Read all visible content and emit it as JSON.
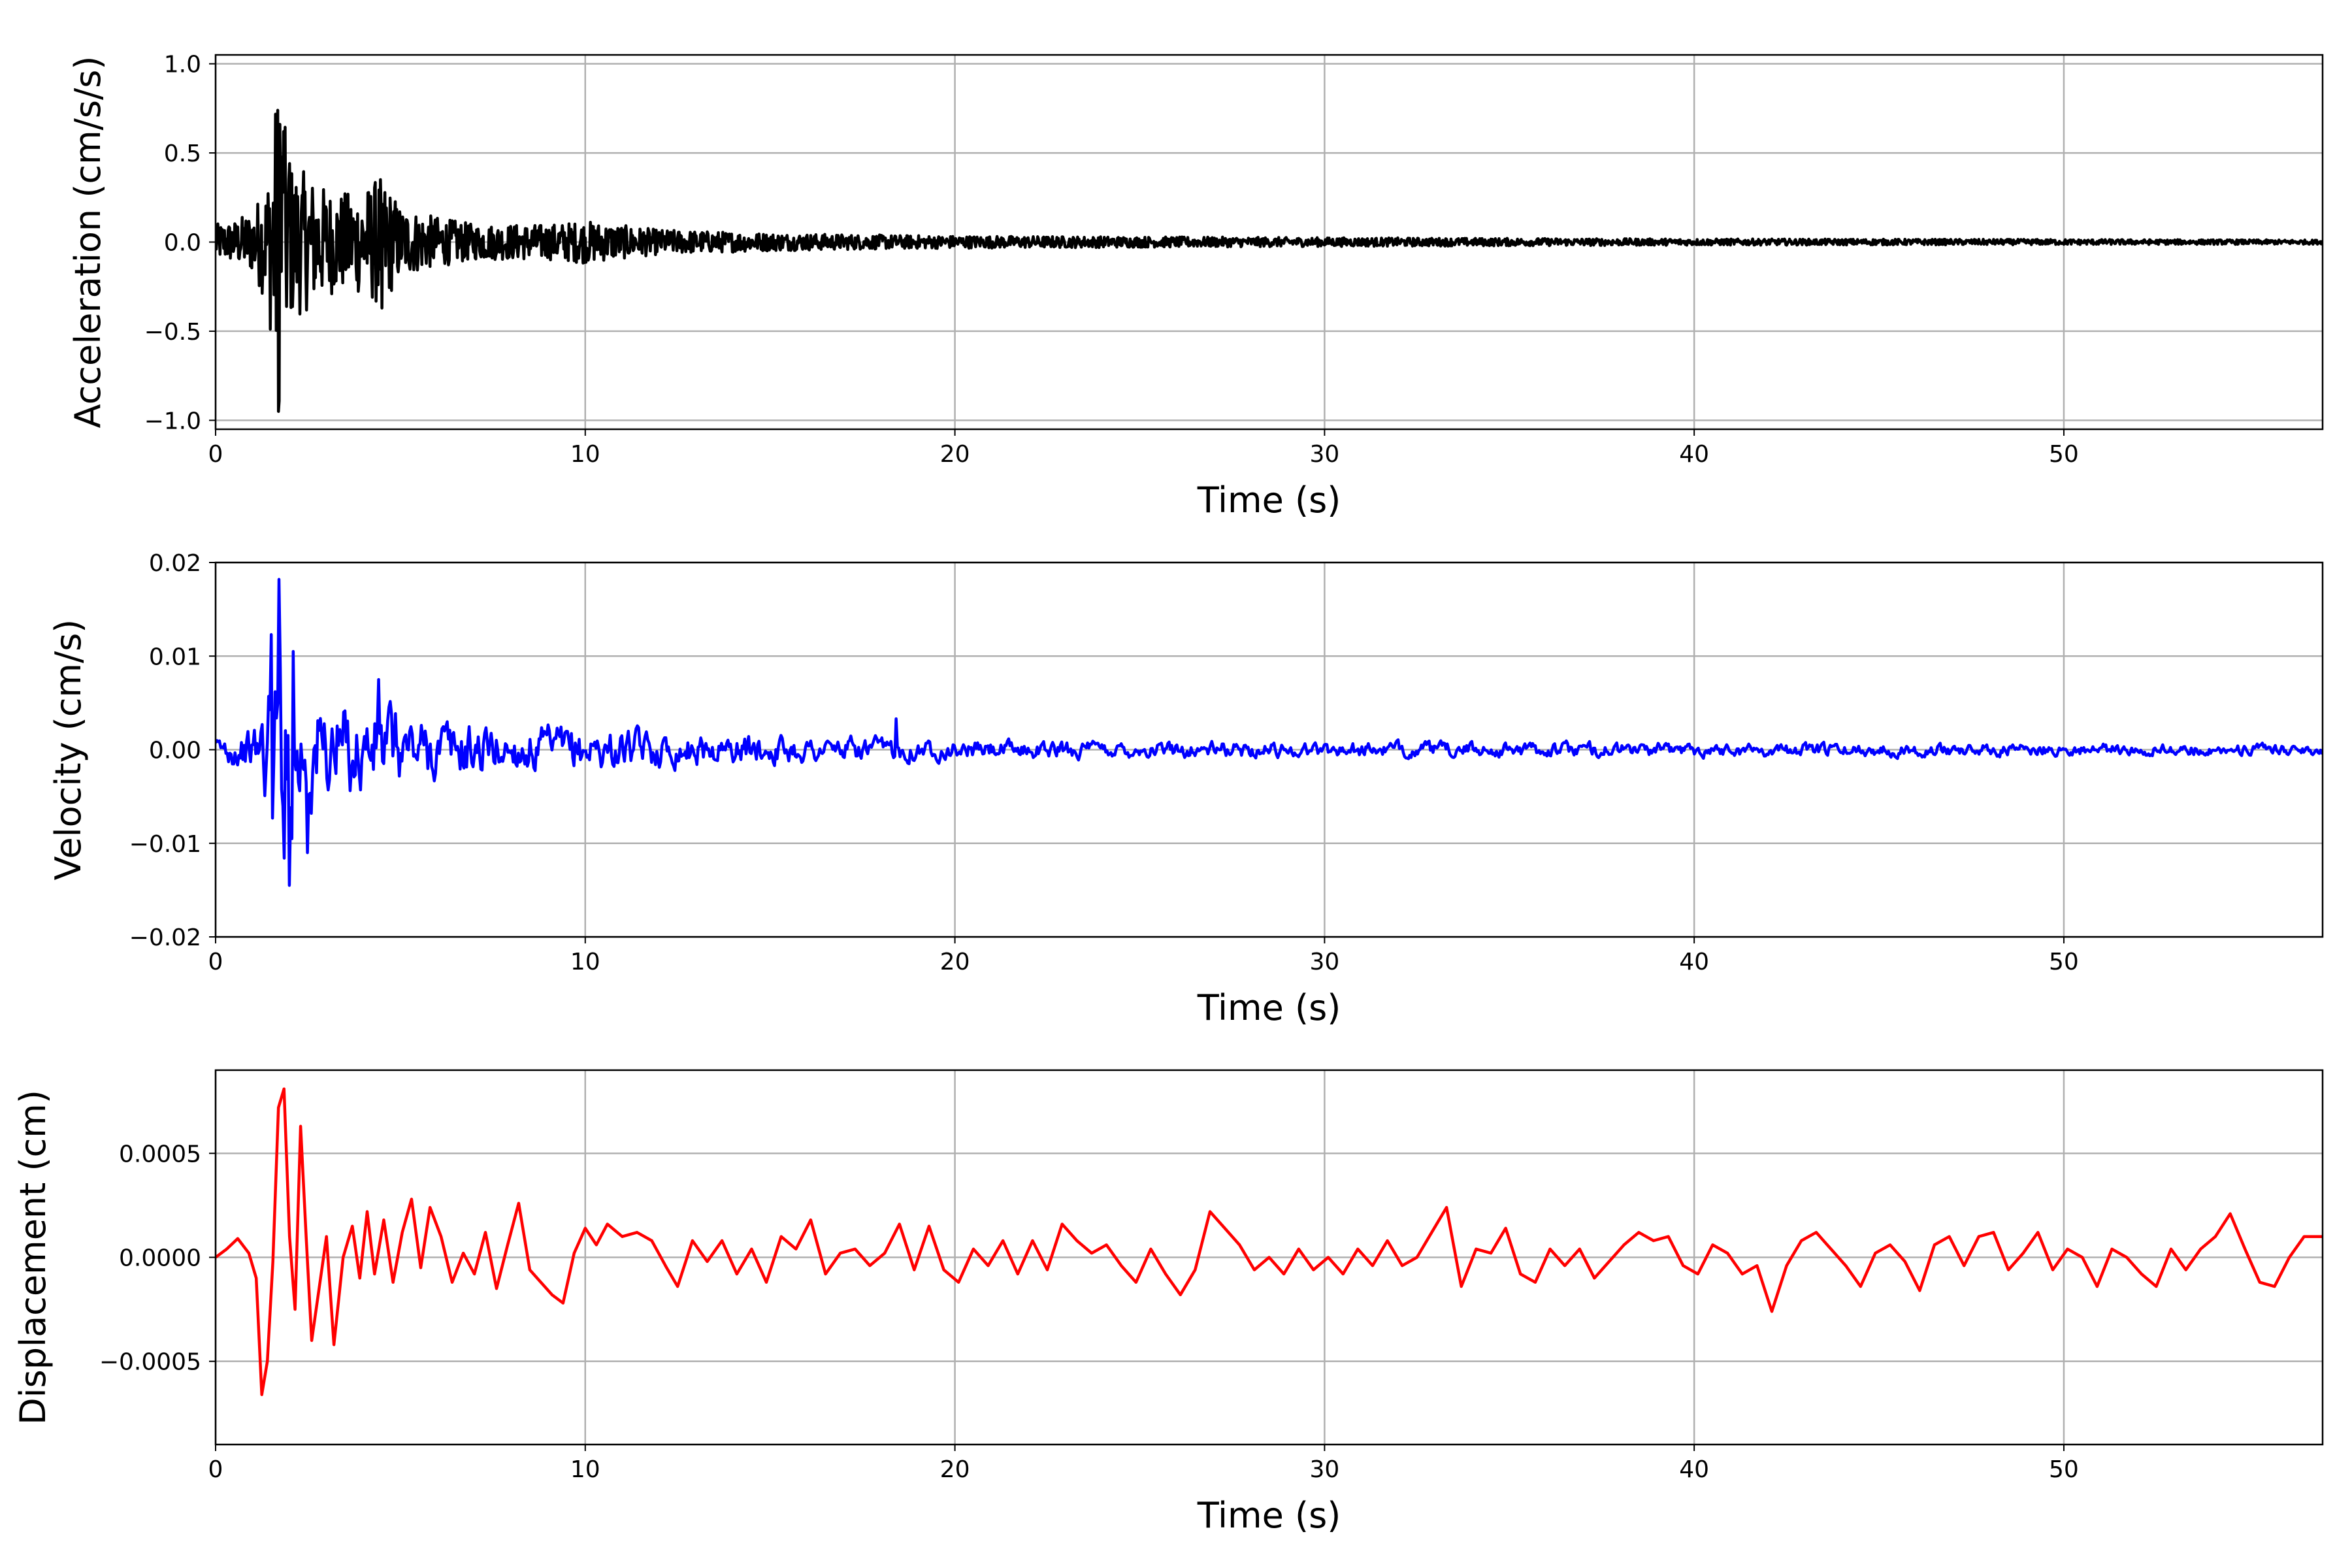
{
  "chart_data": [
    {
      "type": "line",
      "panel": "acceleration",
      "xlabel": "Time (s)",
      "ylabel": "Acceleration (cm/s/s)",
      "xlim": [
        0,
        57
      ],
      "ylim": [
        -1.05,
        1.05
      ],
      "xticks": [
        0,
        10,
        20,
        30,
        40,
        50
      ],
      "xtick_labels": [
        "0",
        "10",
        "20",
        "30",
        "40",
        "50"
      ],
      "yticks": [
        -1.0,
        -0.5,
        0.0,
        0.5,
        1.0
      ],
      "ytick_labels": [
        "−1.0",
        "−0.5",
        "0.0",
        "0.5",
        "1.0"
      ],
      "grid": true,
      "series": [
        {
          "color": "#000000",
          "envelope": [
            [
              0,
              0.1
            ],
            [
              0.5,
              0.12
            ],
            [
              1.0,
              0.18
            ],
            [
              1.4,
              0.35
            ],
            [
              1.7,
              0.95
            ],
            [
              2.0,
              0.45
            ],
            [
              2.5,
              0.38
            ],
            [
              3.0,
              0.3
            ],
            [
              3.5,
              0.28
            ],
            [
              4.0,
              0.3
            ],
            [
              4.5,
              0.38
            ],
            [
              5.0,
              0.2
            ],
            [
              5.8,
              0.15
            ],
            [
              7.0,
              0.1
            ],
            [
              9.0,
              0.1
            ],
            [
              10.0,
              0.12
            ],
            [
              12.0,
              0.07
            ],
            [
              15.0,
              0.05
            ],
            [
              18.0,
              0.04
            ],
            [
              20.0,
              0.035
            ],
            [
              25.0,
              0.03
            ],
            [
              30.0,
              0.025
            ],
            [
              40.0,
              0.018
            ],
            [
              50.0,
              0.015
            ],
            [
              57.0,
              0.012
            ]
          ],
          "peaks": [
            {
              "x": 1.7,
              "y": -0.95
            },
            {
              "x": 1.75,
              "y": 0.66
            },
            {
              "x": 1.85,
              "y": 0.62
            },
            {
              "x": 2.0,
              "y": 0.44
            },
            {
              "x": 4.5,
              "y": -0.37
            },
            {
              "x": 4.45,
              "y": 0.35
            }
          ]
        }
      ]
    },
    {
      "type": "line",
      "panel": "velocity",
      "xlabel": "Time (s)",
      "ylabel": "Velocity (cm/s)",
      "xlim": [
        0,
        57
      ],
      "ylim": [
        -0.02,
        0.02
      ],
      "xticks": [
        0,
        10,
        20,
        30,
        40,
        50
      ],
      "xtick_labels": [
        "0",
        "10",
        "20",
        "30",
        "40",
        "50"
      ],
      "yticks": [
        -0.02,
        -0.01,
        0.0,
        0.01,
        0.02
      ],
      "ytick_labels": [
        "−0.02",
        "−0.01",
        "0.00",
        "0.01",
        "0.02"
      ],
      "grid": true,
      "series": [
        {
          "color": "#0000ff",
          "envelope": [
            [
              0,
              0.0015
            ],
            [
              1.0,
              0.003
            ],
            [
              1.4,
              0.009
            ],
            [
              1.7,
              0.018
            ],
            [
              2.0,
              0.013
            ],
            [
              2.5,
              0.009
            ],
            [
              3.0,
              0.007
            ],
            [
              4.0,
              0.006
            ],
            [
              4.5,
              0.007
            ],
            [
              5.0,
              0.005
            ],
            [
              6.0,
              0.004
            ],
            [
              8.0,
              0.003
            ],
            [
              10.0,
              0.003
            ],
            [
              12.0,
              0.0022
            ],
            [
              15.0,
              0.0018
            ],
            [
              18.0,
              0.0015
            ],
            [
              20.0,
              0.0012
            ],
            [
              30.0,
              0.001
            ],
            [
              40.0,
              0.0009
            ],
            [
              50.0,
              0.0008
            ],
            [
              57.0,
              0.0007
            ]
          ],
          "peaks": [
            {
              "x": 1.7,
              "y": 0.0182
            },
            {
              "x": 1.5,
              "y": 0.0123
            },
            {
              "x": 2.0,
              "y": -0.0145
            },
            {
              "x": 2.1,
              "y": 0.0105
            },
            {
              "x": 2.5,
              "y": -0.011
            },
            {
              "x": 4.4,
              "y": 0.0075
            },
            {
              "x": 18.4,
              "y": 0.0033
            }
          ]
        }
      ]
    },
    {
      "type": "line",
      "panel": "displacement",
      "xlabel": "Time (s)",
      "ylabel": "Displacement (cm)",
      "xlim": [
        0,
        57
      ],
      "ylim": [
        -0.0009,
        0.0009
      ],
      "xticks": [
        0,
        10,
        20,
        30,
        40,
        50
      ],
      "xtick_labels": [
        "0",
        "10",
        "20",
        "30",
        "40",
        "50"
      ],
      "yticks": [
        -0.0005,
        0.0,
        0.0005
      ],
      "ytick_labels": [
        "−0.0005",
        "0.0000",
        "0.0005"
      ],
      "grid": true,
      "series": [
        {
          "color": "#ff0000",
          "points": [
            [
              0,
              0.0
            ],
            [
              0.3,
              4e-05
            ],
            [
              0.6,
              9e-05
            ],
            [
              0.9,
              2e-05
            ],
            [
              1.1,
              -0.0001
            ],
            [
              1.25,
              -0.00066
            ],
            [
              1.4,
              -0.0005
            ],
            [
              1.55,
              -2e-05
            ],
            [
              1.7,
              0.00072
            ],
            [
              1.85,
              0.00081
            ],
            [
              2.0,
              0.0001
            ],
            [
              2.15,
              -0.00025
            ],
            [
              2.3,
              0.00063
            ],
            [
              2.45,
              0.0001
            ],
            [
              2.6,
              -0.0004
            ],
            [
              2.8,
              -0.00015
            ],
            [
              3.0,
              0.0001
            ],
            [
              3.2,
              -0.00042
            ],
            [
              3.45,
              0.0
            ],
            [
              3.7,
              0.00015
            ],
            [
              3.9,
              -0.0001
            ],
            [
              4.1,
              0.00022
            ],
            [
              4.3,
              -8e-05
            ],
            [
              4.55,
              0.00018
            ],
            [
              4.8,
              -0.00012
            ],
            [
              5.05,
              0.00012
            ],
            [
              5.3,
              0.00028
            ],
            [
              5.55,
              -5e-05
            ],
            [
              5.8,
              0.00024
            ],
            [
              6.1,
              0.0001
            ],
            [
              6.4,
              -0.00012
            ],
            [
              6.7,
              2e-05
            ],
            [
              7.0,
              -8e-05
            ],
            [
              7.3,
              0.00012
            ],
            [
              7.6,
              -0.00015
            ],
            [
              7.9,
              6e-05
            ],
            [
              8.2,
              0.00026
            ],
            [
              8.5,
              -6e-05
            ],
            [
              8.8,
              -0.00012
            ],
            [
              9.1,
              -0.00018
            ],
            [
              9.4,
              -0.00022
            ],
            [
              9.7,
              2e-05
            ],
            [
              10.0,
              0.00014
            ],
            [
              10.3,
              6e-05
            ],
            [
              10.6,
              0.00016
            ],
            [
              11.0,
              0.0001
            ],
            [
              11.4,
              0.00012
            ],
            [
              11.8,
              8e-05
            ],
            [
              12.2,
              -5e-05
            ],
            [
              12.5,
              -0.00014
            ],
            [
              12.9,
              8e-05
            ],
            [
              13.3,
              -2e-05
            ],
            [
              13.7,
              8e-05
            ],
            [
              14.1,
              -8e-05
            ],
            [
              14.5,
              4e-05
            ],
            [
              14.9,
              -0.00012
            ],
            [
              15.3,
              0.0001
            ],
            [
              15.7,
              4e-05
            ],
            [
              16.1,
              0.00018
            ],
            [
              16.5,
              -8e-05
            ],
            [
              16.9,
              2e-05
            ],
            [
              17.3,
              4e-05
            ],
            [
              17.7,
              -4e-05
            ],
            [
              18.1,
              2e-05
            ],
            [
              18.5,
              0.00016
            ],
            [
              18.9,
              -6e-05
            ],
            [
              19.3,
              0.00015
            ],
            [
              19.7,
              -6e-05
            ],
            [
              20.1,
              -0.00012
            ],
            [
              20.5,
              4e-05
            ],
            [
              20.9,
              -4e-05
            ],
            [
              21.3,
              8e-05
            ],
            [
              21.7,
              -8e-05
            ],
            [
              22.1,
              8e-05
            ],
            [
              22.5,
              -6e-05
            ],
            [
              22.9,
              0.00016
            ],
            [
              23.3,
              8e-05
            ],
            [
              23.7,
              2e-05
            ],
            [
              24.1,
              6e-05
            ],
            [
              24.5,
              -4e-05
            ],
            [
              24.9,
              -0.00012
            ],
            [
              25.3,
              4e-05
            ],
            [
              25.7,
              -8e-05
            ],
            [
              26.1,
              -0.00018
            ],
            [
              26.5,
              -6e-05
            ],
            [
              26.9,
              0.00022
            ],
            [
              27.3,
              0.00014
            ],
            [
              27.7,
              6e-05
            ],
            [
              28.1,
              -6e-05
            ],
            [
              28.5,
              0.0
            ],
            [
              28.9,
              -8e-05
            ],
            [
              29.3,
              4e-05
            ],
            [
              29.7,
              -6e-05
            ],
            [
              30.1,
              0.0
            ],
            [
              30.5,
              -8e-05
            ],
            [
              30.9,
              4e-05
            ],
            [
              31.3,
              -4e-05
            ],
            [
              31.7,
              8e-05
            ],
            [
              32.1,
              -4e-05
            ],
            [
              32.5,
              0.0
            ],
            [
              32.9,
              0.00012
            ],
            [
              33.3,
              0.00024
            ],
            [
              33.7,
              -0.00014
            ],
            [
              34.1,
              4e-05
            ],
            [
              34.5,
              2e-05
            ],
            [
              34.9,
              0.00014
            ],
            [
              35.3,
              -8e-05
            ],
            [
              35.7,
              -0.00012
            ],
            [
              36.1,
              4e-05
            ],
            [
              36.5,
              -4e-05
            ],
            [
              36.9,
              4e-05
            ],
            [
              37.3,
              -0.0001
            ],
            [
              37.7,
              -2e-05
            ],
            [
              38.1,
              6e-05
            ],
            [
              38.5,
              0.00012
            ],
            [
              38.9,
              8e-05
            ],
            [
              39.3,
              0.0001
            ],
            [
              39.7,
              -4e-05
            ],
            [
              40.1,
              -8e-05
            ],
            [
              40.5,
              6e-05
            ],
            [
              40.9,
              2e-05
            ],
            [
              41.3,
              -8e-05
            ],
            [
              41.7,
              -4e-05
            ],
            [
              42.1,
              -0.00026
            ],
            [
              42.5,
              -4e-05
            ],
            [
              42.9,
              8e-05
            ],
            [
              43.3,
              0.00012
            ],
            [
              43.7,
              4e-05
            ],
            [
              44.1,
              -4e-05
            ],
            [
              44.5,
              -0.00014
            ],
            [
              44.9,
              2e-05
            ],
            [
              45.3,
              6e-05
            ],
            [
              45.7,
              -2e-05
            ],
            [
              46.1,
              -0.00016
            ],
            [
              46.5,
              6e-05
            ],
            [
              46.9,
              0.0001
            ],
            [
              47.3,
              -4e-05
            ],
            [
              47.7,
              0.0001
            ],
            [
              48.1,
              0.00012
            ],
            [
              48.5,
              -6e-05
            ],
            [
              48.9,
              2e-05
            ],
            [
              49.3,
              0.00012
            ],
            [
              49.7,
              -6e-05
            ],
            [
              50.1,
              4e-05
            ],
            [
              50.5,
              0.0
            ],
            [
              50.9,
              -0.00014
            ],
            [
              51.3,
              4e-05
            ],
            [
              51.7,
              0.0
            ],
            [
              52.1,
              -8e-05
            ],
            [
              52.5,
              -0.00014
            ],
            [
              52.9,
              4e-05
            ],
            [
              53.3,
              -6e-05
            ],
            [
              53.7,
              4e-05
            ],
            [
              54.1,
              0.0001
            ],
            [
              54.5,
              0.00021
            ],
            [
              54.9,
              4e-05
            ],
            [
              55.3,
              -0.00012
            ],
            [
              55.7,
              -0.00014
            ],
            [
              56.1,
              0.0
            ],
            [
              56.5,
              0.0001
            ],
            [
              57.0,
              0.0001
            ]
          ]
        }
      ]
    }
  ]
}
